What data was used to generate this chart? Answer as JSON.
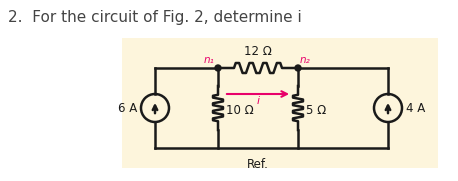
{
  "title": "2.  For the circuit of Fig. 2, determine i",
  "title_fontsize": 11,
  "title_color": "#444444",
  "bg_color": "#fdf5dc",
  "outer_bg": "#ffffff",
  "node1_label": "n₁",
  "node2_label": "n₂",
  "node_label_color": "#e8006a",
  "resistor_top_label": "12 Ω",
  "resistor_left_label": "10 Ω",
  "resistor_right_label": "5 Ω",
  "source_left_label": "6 A",
  "source_right_label": "4 A",
  "current_label": "i",
  "ref_label": "Ref.",
  "wire_color": "#1a1a1a",
  "current_arrow_color": "#e8006a"
}
